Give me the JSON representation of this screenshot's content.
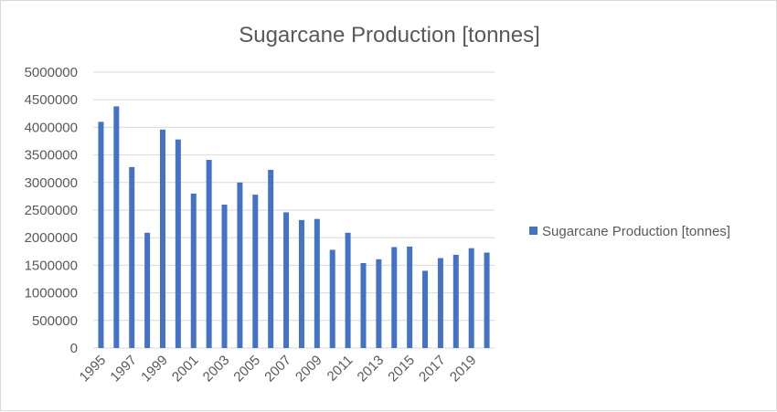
{
  "chart_data": {
    "type": "bar",
    "title": "Sugarcane Production [tonnes]",
    "xlabel": "",
    "ylabel": "",
    "ylim": [
      0,
      5000000
    ],
    "yticks": [
      "0",
      "500000",
      "1000000",
      "1500000",
      "2000000",
      "2500000",
      "3000000",
      "3500000",
      "4000000",
      "4500000",
      "5000000"
    ],
    "xtick_labels": [
      "1995",
      "1997",
      "1999",
      "2001",
      "2003",
      "2005",
      "2007",
      "2009",
      "2011",
      "2013",
      "2015",
      "2017",
      "2019"
    ],
    "grid": true,
    "legend_position": "right",
    "categories": [
      "1995",
      "1996",
      "1997",
      "1998",
      "1999",
      "2000",
      "2001",
      "2002",
      "2003",
      "2004",
      "2005",
      "2006",
      "2007",
      "2008",
      "2009",
      "2010",
      "2011",
      "2012",
      "2013",
      "2014",
      "2015",
      "2016",
      "2017",
      "2018",
      "2019",
      "2020"
    ],
    "series": [
      {
        "name": "Sugarcane Production [tonnes]",
        "color": "#4472c4",
        "values": [
          4100000,
          4380000,
          3280000,
          2090000,
          3960000,
          3780000,
          2800000,
          3410000,
          2600000,
          3000000,
          2780000,
          3230000,
          2460000,
          2320000,
          2340000,
          1780000,
          2090000,
          1540000,
          1610000,
          1830000,
          1840000,
          1400000,
          1630000,
          1690000,
          1810000,
          1730000
        ]
      }
    ]
  }
}
